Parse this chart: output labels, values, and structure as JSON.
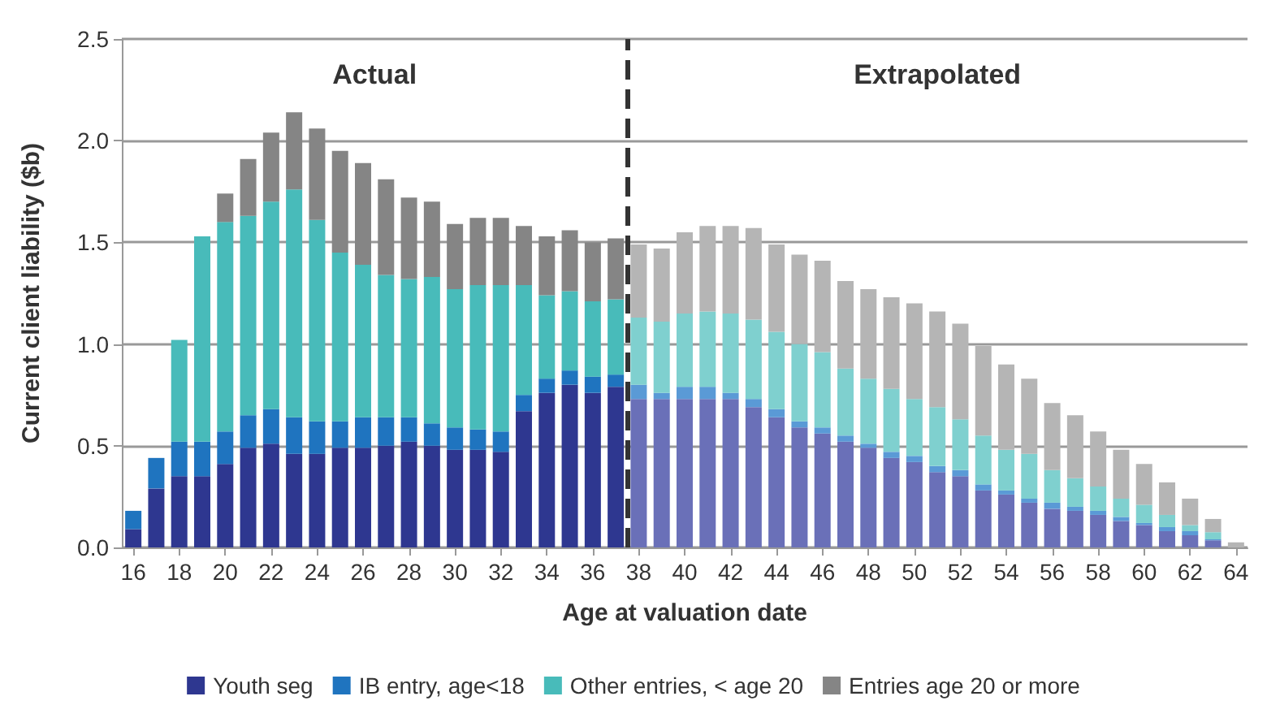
{
  "chart_data": {
    "type": "bar",
    "stacked": true,
    "xlabel": "Age at valuation date",
    "ylabel": "Current client liability ($b)",
    "x": [
      16,
      17,
      18,
      19,
      20,
      21,
      22,
      23,
      24,
      25,
      26,
      27,
      28,
      29,
      30,
      31,
      32,
      33,
      34,
      35,
      36,
      37,
      38,
      39,
      40,
      41,
      42,
      43,
      44,
      45,
      46,
      47,
      48,
      49,
      50,
      51,
      52,
      53,
      54,
      55,
      56,
      57,
      58,
      59,
      60,
      61,
      62,
      63,
      64
    ],
    "xlim": [
      15.5,
      64.5
    ],
    "xticks": [
      16,
      18,
      20,
      22,
      24,
      26,
      28,
      30,
      32,
      34,
      36,
      38,
      40,
      42,
      44,
      46,
      48,
      50,
      52,
      54,
      56,
      58,
      60,
      62,
      64
    ],
    "ylim": [
      0,
      2.5
    ],
    "yticks": [
      {
        "value": 0,
        "label": "0.0"
      },
      {
        "value": 0.5,
        "label": "0.5"
      },
      {
        "value": 1,
        "label": "1.0"
      },
      {
        "value": 1.5,
        "label": "1.5"
      },
      {
        "value": 2,
        "label": "2.0"
      },
      {
        "value": 2.5,
        "label": "2.5"
      }
    ],
    "grid": "y",
    "legend": "bottom",
    "series": [
      {
        "name": "Youth seg",
        "color": "#2e3790",
        "colors": [
          "#2e3790",
          "#2e3790",
          "#2e3790",
          "#2e3790",
          "#2e3790",
          "#2e3790",
          "#2e3790",
          "#2e3790",
          "#2e3790",
          "#2e3790",
          "#2e3790",
          "#2e3790",
          "#2e3790",
          "#2e3790",
          "#2e3790",
          "#2e3790",
          "#2e3790",
          "#2e3790",
          "#2e3790",
          "#2e3790",
          "#2e3790",
          "#2e3790",
          "#6a70b8",
          "#6a70b8",
          "#6a70b8",
          "#6a70b8",
          "#6a70b8",
          "#6a70b8",
          "#6a70b8",
          "#6a70b8",
          "#6a70b8",
          "#6a70b8",
          "#6a70b8",
          "#6a70b8",
          "#6a70b8",
          "#6a70b8",
          "#6a70b8",
          "#6a70b8",
          "#6a70b8",
          "#6a70b8",
          "#6a70b8",
          "#6a70b8",
          "#6a70b8",
          "#6a70b8",
          "#6a70b8",
          "#6a70b8",
          "#6a70b8",
          "#6a70b8",
          "#6a70b8"
        ],
        "values": [
          0.09,
          0.29,
          0.35,
          0.35,
          0.41,
          0.49,
          0.51,
          0.46,
          0.46,
          0.49,
          0.49,
          0.5,
          0.52,
          0.5,
          0.48,
          0.48,
          0.47,
          0.67,
          0.76,
          0.8,
          0.76,
          0.79,
          0.73,
          0.73,
          0.73,
          0.73,
          0.73,
          0.69,
          0.64,
          0.59,
          0.56,
          0.52,
          0.49,
          0.44,
          0.42,
          0.37,
          0.35,
          0.28,
          0.26,
          0.22,
          0.19,
          0.18,
          0.16,
          0.13,
          0.11,
          0.08,
          0.06,
          0.035,
          0
        ]
      },
      {
        "name": "IB entry, age<18",
        "color": "#1f74bf",
        "colors": [
          "#1f74bf",
          "#1f74bf",
          "#1f74bf",
          "#1f74bf",
          "#1f74bf",
          "#1f74bf",
          "#1f74bf",
          "#1f74bf",
          "#1f74bf",
          "#1f74bf",
          "#1f74bf",
          "#1f74bf",
          "#1f74bf",
          "#1f74bf",
          "#1f74bf",
          "#1f74bf",
          "#1f74bf",
          "#1f74bf",
          "#1f74bf",
          "#1f74bf",
          "#1f74bf",
          "#1f74bf",
          "#5a9ad6",
          "#5a9ad6",
          "#5a9ad6",
          "#5a9ad6",
          "#5a9ad6",
          "#5a9ad6",
          "#5a9ad6",
          "#5a9ad6",
          "#5a9ad6",
          "#5a9ad6",
          "#5a9ad6",
          "#5a9ad6",
          "#5a9ad6",
          "#5a9ad6",
          "#5a9ad6",
          "#5a9ad6",
          "#5a9ad6",
          "#5a9ad6",
          "#5a9ad6",
          "#5a9ad6",
          "#5a9ad6",
          "#5a9ad6",
          "#5a9ad6",
          "#5a9ad6",
          "#5a9ad6",
          "#5a9ad6",
          "#5a9ad6"
        ],
        "values": [
          0.09,
          0.15,
          0.17,
          0.17,
          0.16,
          0.16,
          0.17,
          0.18,
          0.16,
          0.13,
          0.15,
          0.14,
          0.12,
          0.11,
          0.11,
          0.1,
          0.1,
          0.08,
          0.07,
          0.07,
          0.08,
          0.06,
          0.07,
          0.03,
          0.06,
          0.06,
          0.03,
          0.04,
          0.04,
          0.03,
          0.03,
          0.03,
          0.02,
          0.03,
          0.03,
          0.03,
          0.03,
          0.03,
          0.02,
          0.02,
          0.03,
          0.02,
          0.02,
          0.02,
          0.01,
          0.02,
          0.02,
          0.005,
          0
        ]
      },
      {
        "name": "Other entries, < age 20",
        "color": "#48bbba",
        "colors": [
          "#48bbba",
          "#48bbba",
          "#48bbba",
          "#48bbba",
          "#48bbba",
          "#48bbba",
          "#48bbba",
          "#48bbba",
          "#48bbba",
          "#48bbba",
          "#48bbba",
          "#48bbba",
          "#48bbba",
          "#48bbba",
          "#48bbba",
          "#48bbba",
          "#48bbba",
          "#48bbba",
          "#48bbba",
          "#48bbba",
          "#48bbba",
          "#48bbba",
          "#7fd0cf",
          "#7fd0cf",
          "#7fd0cf",
          "#7fd0cf",
          "#7fd0cf",
          "#7fd0cf",
          "#7fd0cf",
          "#7fd0cf",
          "#7fd0cf",
          "#7fd0cf",
          "#7fd0cf",
          "#7fd0cf",
          "#7fd0cf",
          "#7fd0cf",
          "#7fd0cf",
          "#7fd0cf",
          "#7fd0cf",
          "#7fd0cf",
          "#7fd0cf",
          "#7fd0cf",
          "#7fd0cf",
          "#7fd0cf",
          "#7fd0cf",
          "#7fd0cf",
          "#7fd0cf",
          "#7fd0cf",
          "#7fd0cf"
        ],
        "values": [
          0,
          0,
          0.5,
          1.01,
          1.03,
          0.98,
          1.02,
          1.12,
          0.99,
          0.83,
          0.75,
          0.7,
          0.68,
          0.72,
          0.68,
          0.71,
          0.72,
          0.54,
          0.41,
          0.39,
          0.37,
          0.37,
          0.33,
          0.35,
          0.36,
          0.37,
          0.39,
          0.39,
          0.38,
          0.38,
          0.37,
          0.33,
          0.32,
          0.31,
          0.28,
          0.29,
          0.25,
          0.24,
          0.2,
          0.22,
          0.16,
          0.14,
          0.12,
          0.09,
          0.09,
          0.06,
          0.03,
          0.035,
          null
        ]
      },
      {
        "name": "Entries age 20 or more",
        "color": "#858585",
        "colors": [
          "#858585",
          "#858585",
          "#858585",
          "#858585",
          "#858585",
          "#858585",
          "#858585",
          "#858585",
          "#858585",
          "#858585",
          "#858585",
          "#858585",
          "#858585",
          "#858585",
          "#858585",
          "#858585",
          "#858585",
          "#858585",
          "#858585",
          "#858585",
          "#858585",
          "#858585",
          "#b5b5b5",
          "#b5b5b5",
          "#b5b5b5",
          "#b5b5b5",
          "#b5b5b5",
          "#b5b5b5",
          "#b5b5b5",
          "#b5b5b5",
          "#b5b5b5",
          "#b5b5b5",
          "#b5b5b5",
          "#b5b5b5",
          "#b5b5b5",
          "#b5b5b5",
          "#b5b5b5",
          "#b5b5b5",
          "#b5b5b5",
          "#b5b5b5",
          "#b5b5b5",
          "#b5b5b5",
          "#b5b5b5",
          "#b5b5b5",
          "#b5b5b5",
          "#b5b5b5",
          "#b5b5b5",
          "#b5b5b5",
          "#b5b5b5"
        ],
        "values": [
          0,
          0,
          0,
          0,
          0.14,
          0.28,
          0.34,
          0.38,
          0.45,
          0.5,
          0.5,
          0.47,
          0.4,
          0.37,
          0.32,
          0.33,
          0.33,
          0.29,
          0.29,
          0.3,
          0.29,
          0.3,
          0.36,
          0.36,
          0.4,
          0.42,
          0.43,
          0.45,
          0.43,
          0.44,
          0.45,
          0.43,
          0.44,
          0.45,
          0.47,
          0.47,
          0.47,
          0.44,
          0.42,
          0.37,
          0.33,
          0.31,
          0.27,
          0.24,
          0.2,
          0.16,
          0.13,
          0.065,
          0.025
        ]
      }
    ],
    "ref_lines": [
      {
        "axis": "x",
        "value": 37.5,
        "color": "#333333",
        "line_style": "dashed"
      }
    ],
    "annotations": [
      "Actual",
      "Extrapolated"
    ]
  }
}
